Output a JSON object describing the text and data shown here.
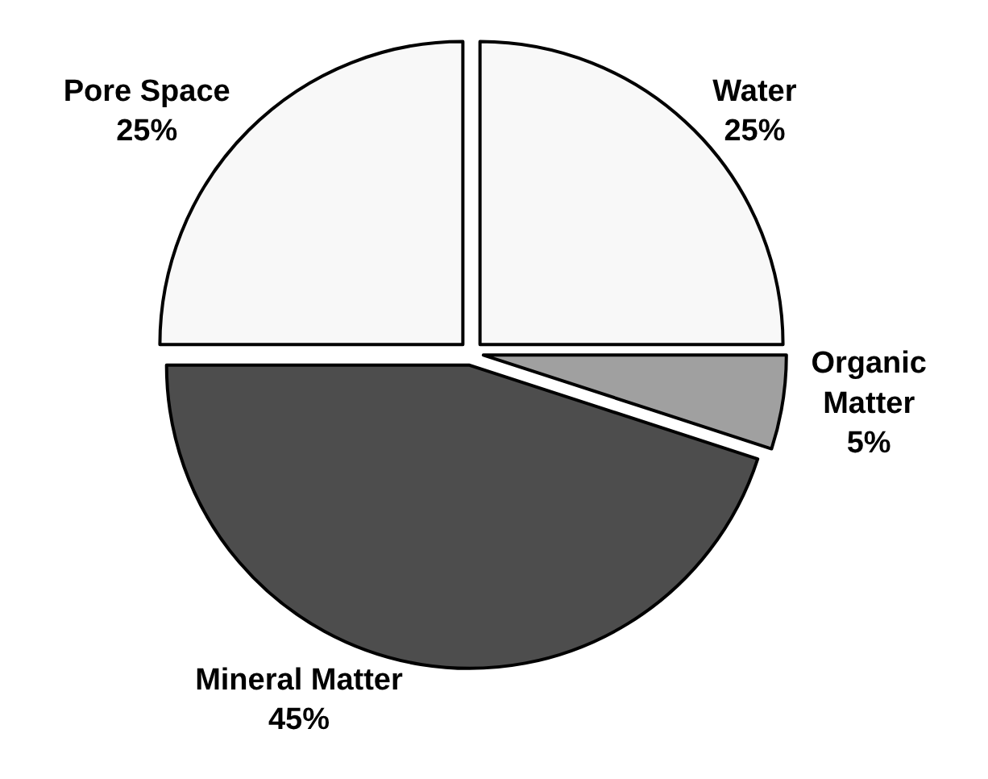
{
  "chart_data": {
    "type": "pie",
    "categories": [
      "Water",
      "Organic Matter",
      "Mineral Matter",
      "Pore Space"
    ],
    "values": [
      25,
      5,
      45,
      25
    ],
    "value_labels": [
      "25%",
      "5%",
      "45%",
      "25%"
    ],
    "colors": [
      "#f8f8f8",
      "#a0a0a0",
      "#4d4d4d",
      "#f8f8f8"
    ],
    "legend": false
  }
}
